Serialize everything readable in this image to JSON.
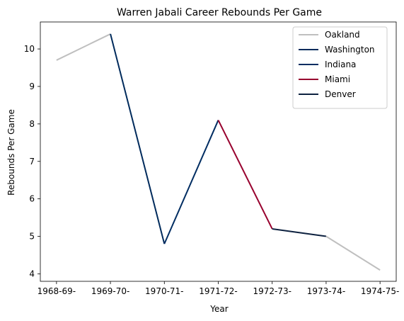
{
  "chart_data": {
    "type": "line",
    "title": "Warren Jabali Career Rebounds Per Game",
    "xlabel": "Year",
    "ylabel": "Rebounds Per Game",
    "categories": [
      "1968-69-",
      "1969-70-",
      "1970-71-",
      "1971-72-",
      "1972-73-",
      "1973-74-",
      "1974-75-"
    ],
    "ylim": [
      3.8,
      10.72
    ],
    "yticks": [
      4,
      5,
      6,
      7,
      8,
      9,
      10
    ],
    "grid": false,
    "legend_position": "top-right",
    "series": [
      {
        "name": "Oakland",
        "color": "#bfbfbf",
        "points": [
          {
            "x": 0,
            "y": 9.7
          },
          {
            "x": 1,
            "y": 10.4
          }
        ]
      },
      {
        "name": "Washington",
        "color": "#002b5c",
        "points": [
          {
            "x": 1,
            "y": 10.4
          },
          {
            "x": 2,
            "y": 4.8
          }
        ]
      },
      {
        "name": "Indiana",
        "color": "#002d62",
        "points": [
          {
            "x": 2,
            "y": 4.8
          },
          {
            "x": 3,
            "y": 8.1
          }
        ]
      },
      {
        "name": "Miami",
        "color": "#98002e",
        "points": [
          {
            "x": 3,
            "y": 8.1
          },
          {
            "x": 4,
            "y": 5.2
          }
        ]
      },
      {
        "name": "Denver",
        "color": "#0e2240",
        "points": [
          {
            "x": 4,
            "y": 5.2
          },
          {
            "x": 5,
            "y": 5.0
          }
        ]
      },
      {
        "name": "",
        "color": "#bfbfbf",
        "points": [
          {
            "x": 5,
            "y": 5.0
          },
          {
            "x": 6,
            "y": 4.1
          }
        ]
      }
    ]
  }
}
